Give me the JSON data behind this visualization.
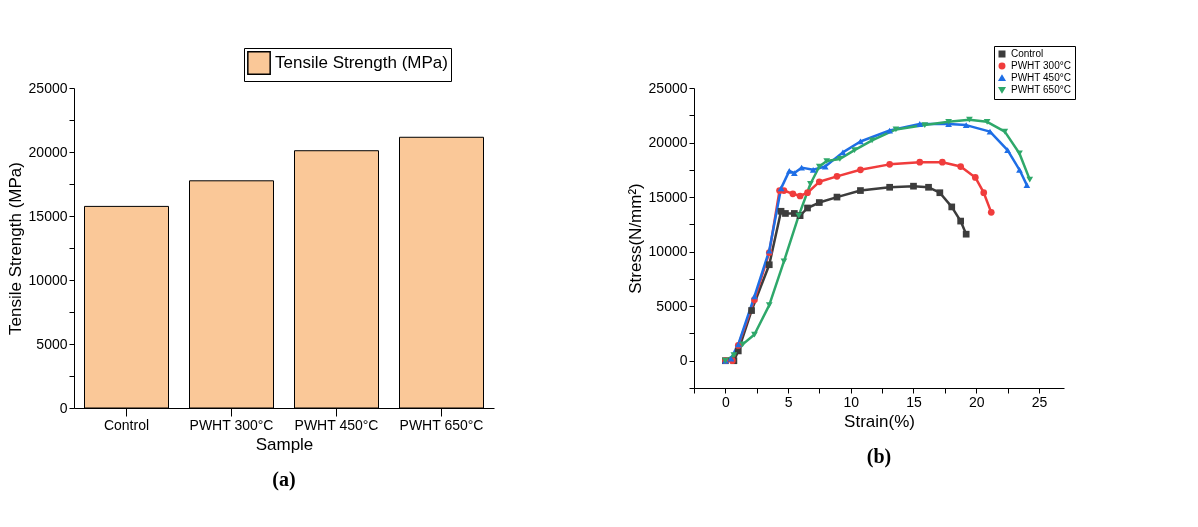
{
  "chart_data": [
    {
      "type": "bar",
      "xlabel": "Sample",
      "ylabel": "Tensile Strength (MPa)",
      "categories": [
        "Control",
        "PWHT 300°C",
        "PWHT 450°C",
        "PWHT 650°C"
      ],
      "series": [
        {
          "name": "Tensile Strength (MPa)",
          "color": "#fac898",
          "values": [
            15750,
            17750,
            20100,
            21150
          ]
        }
      ],
      "ylim": [
        0,
        25000
      ],
      "yticks": [
        0,
        {
          "value": 2500,
          "label": null
        },
        5000,
        {
          "value": 7500,
          "label": null
        },
        10000,
        {
          "value": 12500,
          "label": null
        },
        15000,
        {
          "value": 17500,
          "label": null
        },
        20000,
        {
          "value": 22500,
          "label": null
        },
        25000
      ],
      "grid": false,
      "legend": "top right",
      "annotations": [
        "(a)"
      ]
    },
    {
      "type": "line",
      "xlabel": "Strain(%)",
      "ylabel": "Stress(N/mm²)",
      "series": [
        {
          "name": "Control",
          "color": "#3c3c3c",
          "marker": "square",
          "x": [
            0,
            0.68,
            1.03,
            2.09,
            3.5,
            4.44,
            4.79,
            5.5,
            5.96,
            6.55,
            7.49,
            8.9,
            10.77,
            13.1,
            15.0,
            16.2,
            17.1,
            18.05,
            18.76,
            19.2
          ],
          "values": [
            0,
            0,
            900,
            4600,
            8800,
            13700,
            13500,
            13500,
            13300,
            14000,
            14500,
            15000,
            15600,
            15900,
            16000,
            15900,
            15400,
            14100,
            12800,
            11600
          ]
        },
        {
          "name": "PWHT 300°C",
          "color": "#f03c3c",
          "marker": "circle",
          "x": [
            0,
            0.56,
            1.03,
            2.32,
            3.5,
            4.32,
            4.67,
            5.38,
            5.96,
            6.55,
            7.49,
            8.9,
            10.77,
            13.1,
            15.5,
            17.3,
            18.76,
            19.93,
            20.6,
            21.2
          ],
          "values": [
            0,
            0,
            1400,
            5600,
            9900,
            15600,
            15600,
            15300,
            15100,
            15400,
            16400,
            16900,
            17500,
            18000,
            18200,
            18200,
            17800,
            16800,
            15400,
            13600
          ]
        },
        {
          "name": "PWHT 450°C",
          "color": "#1e6ee6",
          "marker": "triangle",
          "x": [
            0,
            0.45,
            1.03,
            2.32,
            3.5,
            4.44,
            5.1,
            5.5,
            6.08,
            7.0,
            7.96,
            9.37,
            10.77,
            13.1,
            15.5,
            17.8,
            19.2,
            21.1,
            22.5,
            23.45,
            24.04
          ],
          "values": [
            0,
            200,
            1500,
            5900,
            10100,
            15800,
            17400,
            17200,
            17700,
            17500,
            17800,
            19100,
            20100,
            21100,
            21700,
            21700,
            21600,
            21000,
            19300,
            17500,
            16100
          ]
        },
        {
          "name": "PWHT 650°C",
          "color": "#2ea86a",
          "marker": "triangle-down",
          "x": [
            0,
            0.68,
            1.38,
            2.32,
            3.5,
            4.67,
            5.85,
            6.78,
            7.49,
            8.08,
            9.13,
            10.3,
            11.7,
            13.6,
            15.9,
            17.8,
            19.46,
            20.87,
            22.28,
            23.45,
            24.27
          ],
          "values": [
            0,
            500,
            1500,
            2400,
            5100,
            9100,
            13300,
            16200,
            17800,
            18300,
            18500,
            19300,
            20200,
            21200,
            21600,
            21900,
            22100,
            21900,
            21000,
            19000,
            16600
          ]
        }
      ],
      "xlim": [
        -2.5,
        27
      ],
      "xticks": [
        {
          "value": -2.5,
          "label": null
        },
        0,
        {
          "value": 2.5,
          "label": null
        },
        5,
        {
          "value": 7.5,
          "label": null
        },
        10,
        {
          "value": 12.5,
          "label": null
        },
        15,
        {
          "value": 17.5,
          "label": null
        },
        20,
        {
          "value": 22.5,
          "label": null
        },
        25
      ],
      "ylim": [
        -2500,
        25000
      ],
      "yticks": [
        {
          "value": -2500,
          "label": null
        },
        0,
        {
          "value": 2500,
          "label": null
        },
        5000,
        {
          "value": 7500,
          "label": null
        },
        10000,
        {
          "value": 12500,
          "label": null
        },
        15000,
        {
          "value": 17500,
          "label": null
        },
        20000,
        {
          "value": 22500,
          "label": null
        },
        25000
      ],
      "grid": false,
      "legend": "top right",
      "line_style": "solid",
      "annotations": [
        "(b)"
      ]
    }
  ]
}
